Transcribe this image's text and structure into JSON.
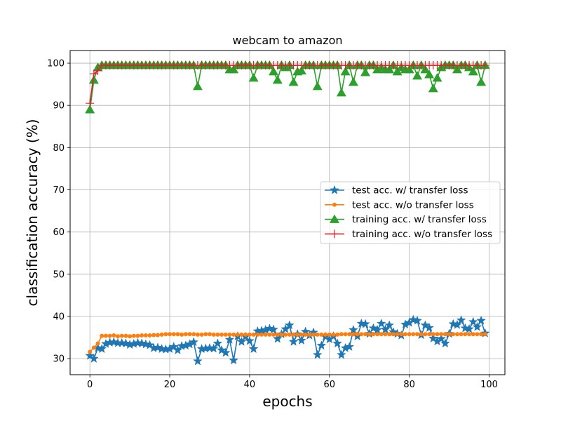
{
  "chart_data": {
    "type": "line",
    "title": "webcam to amazon",
    "xlabel": "epochs",
    "ylabel": "classification accuracy (%)",
    "xlim": [
      -4.95,
      103.95
    ],
    "ylim": [
      26.2,
      103.0
    ],
    "xticks": [
      0,
      20,
      40,
      60,
      80,
      100
    ],
    "yticks": [
      30,
      40,
      50,
      60,
      70,
      80,
      90,
      100
    ],
    "grid": true,
    "legend_position": "center-right",
    "series": [
      {
        "name": "test acc. w/ transfer loss",
        "color": "#1f77b4",
        "marker": "star",
        "values": [
          30.7,
          30.0,
          32.5,
          32.3,
          33.5,
          33.8,
          33.9,
          33.7,
          33.7,
          33.6,
          33.3,
          33.5,
          33.7,
          33.6,
          33.4,
          33.2,
          32.5,
          32.6,
          32.3,
          32.2,
          32.3,
          32.8,
          32.0,
          33.0,
          33.1,
          33.4,
          33.9,
          29.4,
          32.3,
          32.4,
          32.5,
          32.4,
          33.6,
          32.0,
          31.4,
          34.5,
          29.6,
          35.3,
          34.0,
          35.2,
          34.2,
          32.3,
          36.5,
          36.6,
          36.8,
          37.1,
          36.9,
          34.7,
          35.8,
          37.0,
          37.9,
          34.0,
          35.8,
          34.3,
          36.4,
          35.5,
          36.2,
          30.9,
          33.1,
          35.2,
          34.6,
          35.3,
          33.6,
          30.9,
          32.5,
          32.8,
          36.8,
          35.3,
          38.3,
          38.2,
          35.9,
          37.2,
          36.8,
          38.3,
          36.9,
          37.9,
          36.3,
          35.9,
          35.5,
          38.1,
          38.5,
          39.2,
          39.0,
          35.6,
          37.9,
          37.3,
          34.8,
          34.1,
          34.7,
          33.6,
          35.9,
          38.2,
          38.0,
          39.1,
          37.2,
          37.0,
          38.7,
          37.5,
          39.0,
          36.0
        ]
      },
      {
        "name": "test acc. w/o transfer loss",
        "color": "#ff7f0e",
        "marker": "circle",
        "values": [
          31.6,
          32.6,
          33.6,
          35.4,
          35.4,
          35.4,
          35.5,
          35.3,
          35.4,
          35.4,
          35.3,
          35.4,
          35.4,
          35.5,
          35.5,
          35.5,
          35.6,
          35.6,
          35.7,
          35.8,
          35.8,
          35.8,
          35.8,
          35.7,
          35.8,
          35.8,
          35.8,
          35.7,
          35.7,
          35.8,
          35.8,
          35.7,
          35.7,
          35.7,
          35.7,
          35.7,
          35.7,
          35.7,
          35.7,
          35.7,
          35.7,
          35.7,
          35.7,
          35.7,
          35.7,
          35.7,
          35.7,
          35.7,
          35.7,
          35.7,
          35.7,
          35.7,
          35.7,
          35.7,
          35.7,
          35.7,
          35.7,
          35.7,
          35.7,
          35.7,
          35.7,
          35.7,
          35.7,
          35.8,
          35.8,
          35.8,
          35.8,
          35.8,
          35.8,
          35.8,
          35.8,
          35.8,
          35.8,
          35.8,
          35.8,
          35.8,
          35.8,
          35.8,
          35.8,
          35.8,
          35.8,
          35.8,
          35.8,
          35.8,
          35.8,
          35.8,
          35.8,
          35.8,
          35.8,
          35.8,
          35.8,
          35.8,
          35.8,
          35.8,
          35.8,
          35.8,
          35.8,
          35.8,
          35.8,
          35.8
        ]
      },
      {
        "name": "training acc. w/ transfer loss",
        "color": "#2ca02c",
        "marker": "triangle",
        "values": [
          89.0,
          96.0,
          99.0,
          99.5,
          99.5,
          99.5,
          99.5,
          99.5,
          99.5,
          99.5,
          99.5,
          99.5,
          99.5,
          99.5,
          99.5,
          99.5,
          99.5,
          99.5,
          99.5,
          99.5,
          99.5,
          99.5,
          99.5,
          99.5,
          99.5,
          99.5,
          99.5,
          94.5,
          99.5,
          99.5,
          99.5,
          99.5,
          99.5,
          99.5,
          99.5,
          98.5,
          98.5,
          99.5,
          99.5,
          99.5,
          99.5,
          96.5,
          99.5,
          99.5,
          99.5,
          99.5,
          98.0,
          96.0,
          99.5,
          99.0,
          99.5,
          95.5,
          98.0,
          98.2,
          99.5,
          99.5,
          99.5,
          94.5,
          99.5,
          99.5,
          99.5,
          99.5,
          99.5,
          93.0,
          98.0,
          99.5,
          95.5,
          99.5,
          99.5,
          97.8,
          99.5,
          99.5,
          98.5,
          99.0,
          98.5,
          98.5,
          99.5,
          98.0,
          99.0,
          98.5,
          98.5,
          99.5,
          97.0,
          99.5,
          98.5,
          97.3,
          94.0,
          96.5,
          99.0,
          99.5,
          99.5,
          99.5,
          98.5,
          99.5,
          99.5,
          99.0,
          98.0,
          99.5,
          95.5,
          99.5
        ]
      },
      {
        "name": "training acc. w/o transfer loss",
        "color": "#d62728",
        "marker": "plus",
        "values": [
          90.5,
          97.5,
          98.2,
          99.5,
          99.5,
          99.5,
          99.5,
          99.5,
          99.5,
          99.5,
          99.5,
          99.5,
          99.5,
          99.5,
          99.5,
          99.5,
          99.5,
          99.5,
          99.5,
          99.5,
          99.5,
          99.5,
          99.5,
          99.5,
          99.5,
          99.5,
          99.5,
          99.5,
          99.5,
          99.5,
          99.5,
          99.5,
          99.5,
          99.5,
          99.5,
          99.5,
          99.5,
          99.5,
          99.5,
          99.5,
          99.5,
          99.5,
          99.5,
          99.5,
          99.5,
          99.5,
          99.5,
          99.5,
          99.5,
          99.5,
          99.5,
          99.5,
          99.5,
          99.5,
          99.5,
          99.5,
          99.5,
          99.5,
          99.5,
          99.5,
          99.5,
          99.5,
          99.5,
          99.5,
          99.5,
          99.5,
          99.5,
          99.5,
          99.5,
          99.5,
          99.5,
          99.5,
          99.5,
          99.5,
          99.5,
          99.5,
          99.5,
          99.5,
          99.5,
          99.5,
          99.5,
          99.5,
          99.5,
          99.5,
          99.5,
          99.5,
          99.5,
          99.5,
          99.5,
          99.5,
          99.5,
          99.5,
          99.5,
          99.5,
          99.5,
          99.5,
          99.5,
          99.5,
          99.5,
          99.5
        ]
      }
    ]
  }
}
